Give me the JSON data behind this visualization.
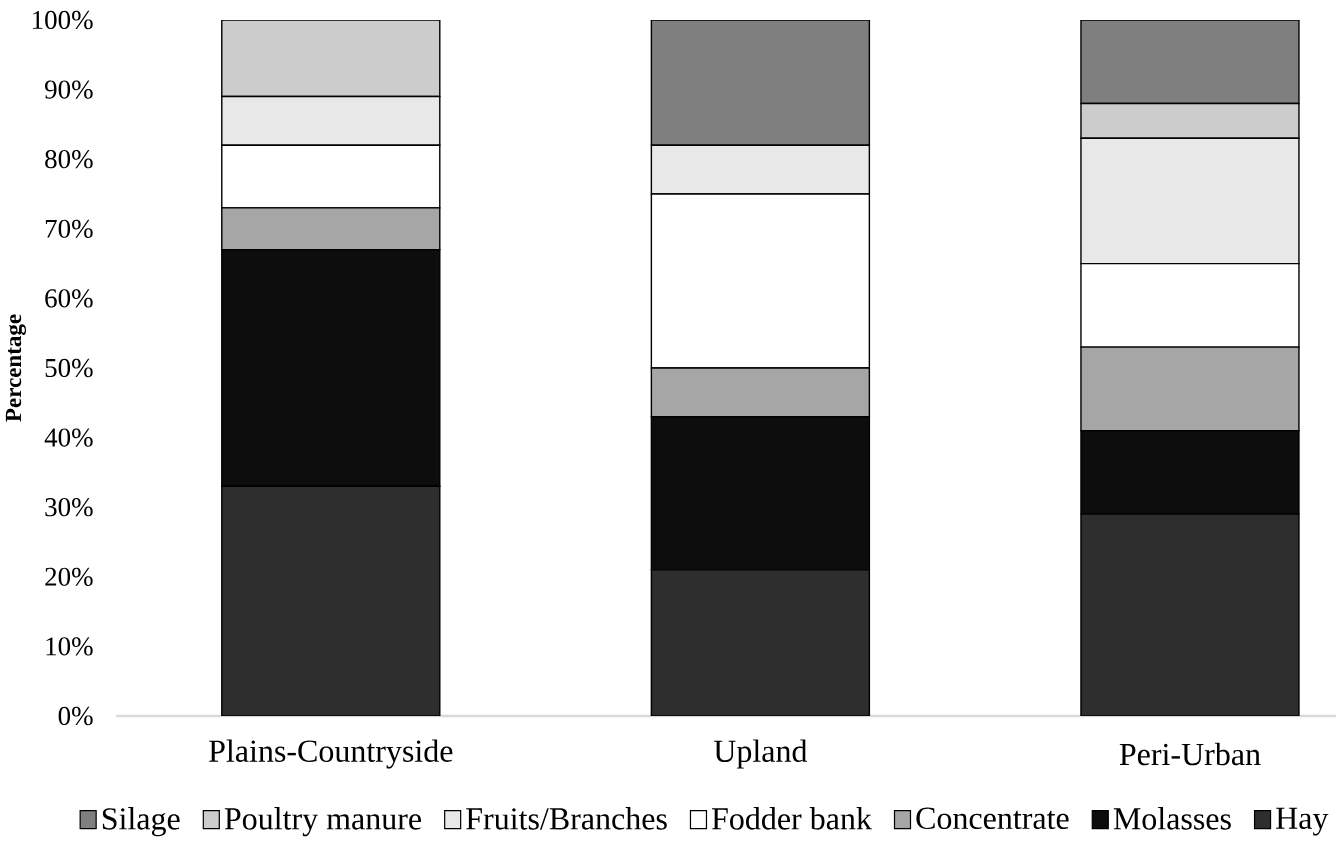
{
  "chart_data": {
    "type": "bar",
    "stacked": true,
    "categories": [
      "Plains-Countryside",
      "Upland",
      "Peri-Urban"
    ],
    "ylabel": "Percentage",
    "ylim": [
      0,
      100
    ],
    "yticks": [
      {
        "value": 0,
        "label": "0%"
      },
      {
        "value": 10,
        "label": "10%"
      },
      {
        "value": 20,
        "label": "20%"
      },
      {
        "value": 30,
        "label": "30%"
      },
      {
        "value": 40,
        "label": "40%"
      },
      {
        "value": 50,
        "label": "50%"
      },
      {
        "value": 60,
        "label": "60%"
      },
      {
        "value": 70,
        "label": "70%"
      },
      {
        "value": 80,
        "label": "80%"
      },
      {
        "value": 90,
        "label": "90%"
      },
      {
        "value": 100,
        "label": "100%"
      }
    ],
    "legend": "bottom",
    "grid": false,
    "series": [
      {
        "name": "Hay",
        "color": "#2e2e2e",
        "values": [
          33,
          21,
          29
        ]
      },
      {
        "name": "Molasses",
        "color": "#0d0d0d",
        "values": [
          34,
          22,
          12
        ]
      },
      {
        "name": "Concentrate",
        "color": "#a6a6a6",
        "values": [
          6,
          7,
          12
        ]
      },
      {
        "name": "Fodder bank",
        "color": "#ffffff",
        "values": [
          9,
          25,
          12
        ]
      },
      {
        "name": "Fruits/Branches",
        "color": "#e8e8e8",
        "values": [
          7,
          7,
          18
        ]
      },
      {
        "name": "Poultry manure",
        "color": "#cccccc",
        "values": [
          11,
          0,
          5
        ]
      },
      {
        "name": "Silage",
        "color": "#7f7f7f",
        "values": [
          0,
          18,
          12
        ]
      }
    ]
  }
}
